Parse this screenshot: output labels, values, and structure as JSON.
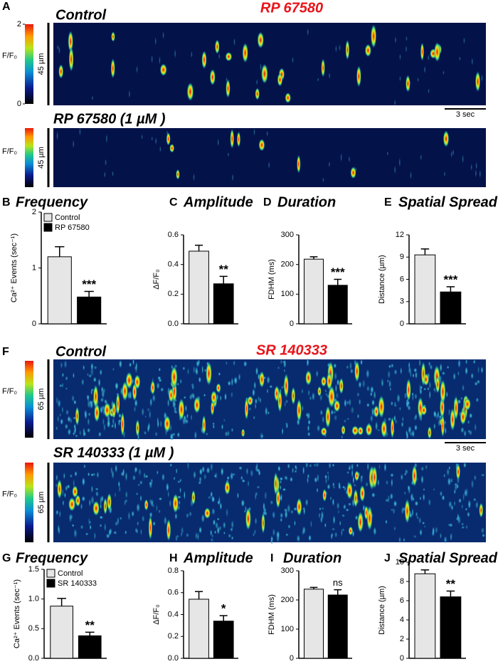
{
  "panel_A": {
    "letter": "A",
    "header": "RP 67580",
    "control_title": "Control",
    "treated_title": "RP 67580 (1 µM )",
    "colorbar_label": "F/F₀",
    "colorbar_lim": [
      0,
      2
    ],
    "colorbar_ticks": [
      0,
      2
    ],
    "length_scale": "45 µm",
    "time_scale": "3 sec"
  },
  "panel_F": {
    "letter": "F",
    "header": "SR 140333",
    "control_title": "Control",
    "treated_title": "SR 140333 (1 µM )",
    "colorbar_label": "F/F₀",
    "length_scale": "65 µm",
    "time_scale": "3 sec"
  },
  "chart_data": [
    {
      "type": "bar",
      "letter": "B",
      "title": "Frequency",
      "ylabel": "Ca²⁺ Events (sec⁻¹)",
      "categories": [
        "Control",
        "RP 67580"
      ],
      "values": [
        1.2,
        0.48
      ],
      "errors": [
        0.18,
        0.1
      ],
      "colors": [
        "#e6e6e6",
        "#000000"
      ],
      "significance": "***",
      "ylim": [
        0,
        2
      ],
      "yticks": [
        0,
        1,
        2
      ]
    },
    {
      "type": "bar",
      "letter": "C",
      "title": "Amplitude",
      "ylabel": "ΔF/F₀",
      "values": [
        0.49,
        0.27
      ],
      "errors": [
        0.04,
        0.05
      ],
      "colors": [
        "#e6e6e6",
        "#000000"
      ],
      "significance": "**",
      "ylim": [
        0,
        0.6
      ],
      "yticks": [
        {
          "value": 0,
          "label": "0.0"
        },
        0.2,
        0.4,
        0.6
      ]
    },
    {
      "type": "bar",
      "letter": "D",
      "title": "Duration",
      "ylabel": "FDHM (ms)",
      "values": [
        218,
        130
      ],
      "errors": [
        8,
        20
      ],
      "colors": [
        "#e6e6e6",
        "#000000"
      ],
      "significance": "***",
      "ylim": [
        0,
        300
      ],
      "yticks": [
        0,
        100,
        200,
        300
      ]
    },
    {
      "type": "bar",
      "letter": "E",
      "title": "Spatial Spread",
      "ylabel": "Distance (µm)",
      "values": [
        9.3,
        4.3
      ],
      "errors": [
        0.8,
        0.7
      ],
      "colors": [
        "#e6e6e6",
        "#000000"
      ],
      "significance": "***",
      "ylim": [
        0,
        12
      ],
      "yticks": [
        0,
        3,
        6,
        9,
        12
      ]
    },
    {
      "type": "bar",
      "letter": "G",
      "title": "Frequency",
      "ylabel": "Ca²⁺ Events (sec⁻¹)",
      "categories": [
        "Control",
        "SR 140333"
      ],
      "values": [
        0.88,
        0.38
      ],
      "errors": [
        0.13,
        0.06
      ],
      "colors": [
        "#e6e6e6",
        "#000000"
      ],
      "significance": "**",
      "ylim": [
        0,
        1.5
      ],
      "yticks": [
        {
          "value": 0,
          "label": "0.0"
        },
        0.5,
        {
          "value": 1,
          "label": "1.0"
        },
        1.5
      ]
    },
    {
      "type": "bar",
      "letter": "H",
      "title": "Amplitude",
      "ylabel": "ΔF/F₀",
      "values": [
        0.54,
        0.34
      ],
      "errors": [
        0.07,
        0.05
      ],
      "colors": [
        "#e6e6e6",
        "#000000"
      ],
      "significance": "*",
      "ylim": [
        0,
        0.8
      ],
      "yticks": [
        {
          "value": 0,
          "label": "0.0"
        },
        0.2,
        0.4,
        0.6,
        0.8
      ]
    },
    {
      "type": "bar",
      "letter": "I",
      "title": "Duration",
      "ylabel": "FDHM (ms)",
      "values": [
        237,
        217
      ],
      "errors": [
        6,
        18
      ],
      "colors": [
        "#e6e6e6",
        "#000000"
      ],
      "significance": "ns",
      "ylim": [
        0,
        300
      ],
      "yticks": [
        0,
        100,
        200,
        300
      ]
    },
    {
      "type": "bar",
      "letter": "J",
      "title": "Spatial Spread",
      "ylabel": "Distance (µm)",
      "values": [
        8.8,
        6.4
      ],
      "errors": [
        0.4,
        0.6
      ],
      "colors": [
        "#e6e6e6",
        "#000000"
      ],
      "significance": "**",
      "ylim": [
        0,
        10
      ],
      "yticks": [
        0,
        2,
        4,
        6,
        8,
        10
      ]
    }
  ]
}
